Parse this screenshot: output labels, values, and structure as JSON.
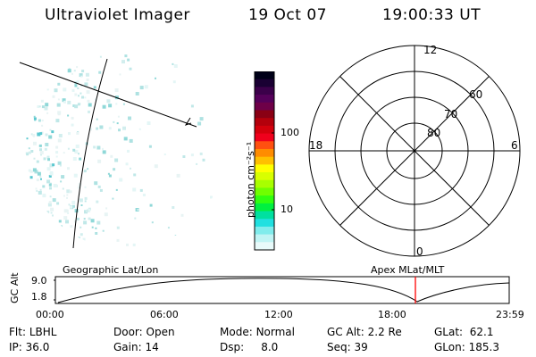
{
  "header": {
    "title": "Ultraviolet Imager",
    "date": "19 Oct 07",
    "time": "19:00:33 UT"
  },
  "colorbar": {
    "unit_label": "photon cm⁻²s⁻¹",
    "ticks": [
      "100",
      "10"
    ],
    "colors": [
      "#000018",
      "#1a0033",
      "#3b004a",
      "#55005a",
      "#6e0048",
      "#8a0014",
      "#b4000c",
      "#d4000c",
      "#f0001c",
      "#ff5010",
      "#ff8c00",
      "#ffc000",
      "#ffff00",
      "#d8ff00",
      "#a8ff00",
      "#70ff00",
      "#30ff10",
      "#00f040",
      "#00e0a0",
      "#20e0e0",
      "#80ecec",
      "#c0f4f4",
      "#e8fafa"
    ]
  },
  "polar": {
    "ring_labels": [
      "80",
      "70",
      "60"
    ],
    "mlt_labels": {
      "top": "12",
      "left": "18",
      "right": "6",
      "bottom": "0"
    }
  },
  "timeline": {
    "left_label": "Geographic Lat/Lon",
    "right_label": "Apex MLat/MLT",
    "y_axis_title": "GC Alt",
    "y_ticks": [
      "9.0",
      "1.8"
    ],
    "x_ticks": [
      "00:00",
      "06:00",
      "12:00",
      "18:00",
      "23:59"
    ],
    "current_time_marker": "19:00",
    "marker_color": "#ff0000"
  },
  "status": {
    "row1": [
      {
        "label": "Flt:",
        "value": "LBHL"
      },
      {
        "label": "Door:",
        "value": "Open"
      },
      {
        "label": "Mode:",
        "value": "Normal"
      },
      {
        "label": "GC Alt:",
        "value": "2.2 Re"
      },
      {
        "label": "GLat:",
        "value": "62.1"
      }
    ],
    "row2": [
      {
        "label": "IP:",
        "value": "36.0"
      },
      {
        "label": "Gain:",
        "value": "14"
      },
      {
        "label": "Dsp:",
        "value": "8.0"
      },
      {
        "label": "Seq:",
        "value": "39"
      },
      {
        "label": "GLon:",
        "value": "185.3"
      }
    ]
  }
}
